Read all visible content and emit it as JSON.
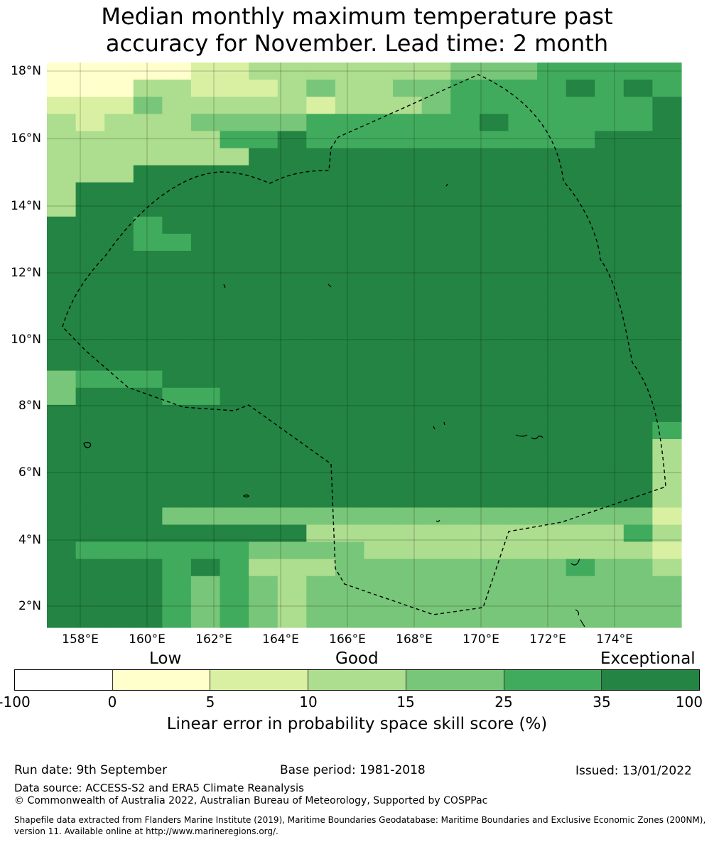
{
  "title_line1": "Median monthly maximum temperature past",
  "title_line2": "accuracy for November. Lead time: 2 month",
  "map": {
    "lat_labels": [
      "18°N",
      "16°N",
      "14°N",
      "12°N",
      "10°N",
      "8°N",
      "6°N",
      "4°N",
      "2°N"
    ],
    "lon_labels": [
      "158°E",
      "160°E",
      "162°E",
      "164°E",
      "166°E",
      "168°E",
      "170°E",
      "172°E",
      "174°E"
    ],
    "lon_range": [
      157.0,
      176.0
    ],
    "lat_range": [
      1.4,
      18.4
    ],
    "grid": true,
    "boundary_line_style": "dashed black",
    "skill_grid_rows_north_to_south": [
      "1111122333333344455555",
      "1113322234334455556565",
      "2224333332333455555556",
      "3233344445555556555556",
      "3333335565555555555666",
      "3333333666666666666666",
      "3336666666666666666666",
      "3666666666666666666666",
      "3666666666666666666666",
      "6665666666666666666666",
      "6665566666666666666666",
      "6666666666666666666666",
      "6666666666666666666666",
      "6666666666666666666666",
      "6666666666666666666666",
      "6666666666666666666666",
      "6666666666666666666666",
      "6666666666666666666666",
      "4555666666666666666666",
      "4666556666666666666666",
      "6666666666666666666666",
      "6666666666666666666665",
      "6666666666666666666663",
      "6666666666666666666663",
      "6666666666666666666663",
      "6666666666666666666663",
      "6666444444444444444442",
      "6666666663333333333353",
      "6555555444433333333332",
      "6666565333444444445443",
      "6666545434444444444444",
      "6666545434444444444444",
      "6666545434444444444444"
    ]
  },
  "colorbar": {
    "qualitative": [
      "Low",
      "Good",
      "Exceptional"
    ],
    "ticks": [
      "-100",
      "0",
      "5",
      "10",
      "15",
      "25",
      "35",
      "100"
    ],
    "colors": [
      "#ffffff",
      "#ffffcc",
      "#d9f0a3",
      "#addd8e",
      "#78c679",
      "#41ab5d",
      "#238443"
    ],
    "label": "Linear error in probability space skill score (%)"
  },
  "footer": {
    "run_date": "Run date: 9th September",
    "base_period": "Base period: 1981-2018",
    "issued": "Issued: 13/01/2022",
    "data_source": "Data source: ACCESS-S2 and ERA5 Climate Reanalysis",
    "copyright": "© Commonwealth of Australia 2022, Australian Bureau of Meteorology, Supported by COSPPac",
    "shapefile": "Shapefile data extracted from Flanders Marine Institute (2019), Maritime Boundaries Geodatabase: Maritime Boundaries and Exclusive Economic Zones (200NM), version 11. Available online at http://www.marineregions.org/."
  }
}
